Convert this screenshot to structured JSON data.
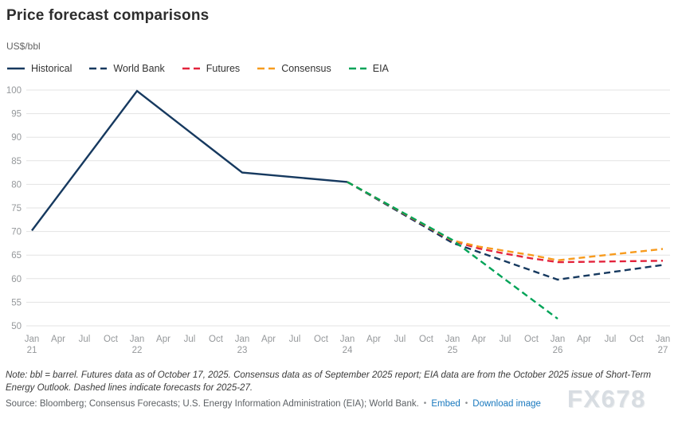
{
  "header": {
    "title": "Price forecast comparisons",
    "unit_label": "US$/bbl"
  },
  "legend": {
    "items": [
      {
        "label": "Historical",
        "color": "#16395f",
        "dashed": false
      },
      {
        "label": "World Bank",
        "color": "#16395f",
        "dashed": true
      },
      {
        "label": "Futures",
        "color": "#e3233c",
        "dashed": true
      },
      {
        "label": "Consensus",
        "color": "#f79b1e",
        "dashed": true
      },
      {
        "label": "EIA",
        "color": "#00a357",
        "dashed": true
      }
    ]
  },
  "footer": {
    "note": "Note: bbl = barrel. Futures data as of October 17, 2025. Consensus data as of September 2025 report; EIA data are from the October 2025 issue of Short-Term Energy Outlook. Dashed lines indicate forecasts for 2025-27.",
    "source": "Source: Bloomberg; Consensus Forecasts; U.S. Energy Information Administration (EIA); World Bank.",
    "bullet": "•",
    "embed_link": "Embed",
    "download_link": "Download image",
    "watermark": "FX678"
  },
  "chart_data": {
    "type": "line",
    "title": "Price forecast comparisons",
    "ylabel": "US$/bbl",
    "ylim": [
      50,
      100
    ],
    "y_ticks": [
      50,
      55,
      60,
      65,
      70,
      75,
      80,
      85,
      90,
      95,
      100
    ],
    "grid": "horizontal-only",
    "legend_position": "top-left",
    "x_axis_note": "quarterly ticks, x index 0 = Jan 2021, 4 per year",
    "x_ticks": [
      {
        "month": "Jan",
        "year": "21"
      },
      {
        "month": "Apr"
      },
      {
        "month": "Jul"
      },
      {
        "month": "Oct"
      },
      {
        "month": "Jan",
        "year": "22"
      },
      {
        "month": "Apr"
      },
      {
        "month": "Jul"
      },
      {
        "month": "Oct"
      },
      {
        "month": "Jan",
        "year": "23"
      },
      {
        "month": "Apr"
      },
      {
        "month": "Jul"
      },
      {
        "month": "Oct"
      },
      {
        "month": "Jan",
        "year": "24"
      },
      {
        "month": "Apr"
      },
      {
        "month": "Jul"
      },
      {
        "month": "Oct"
      },
      {
        "month": "Jan",
        "year": "25"
      },
      {
        "month": "Apr"
      },
      {
        "month": "Jul"
      },
      {
        "month": "Oct"
      },
      {
        "month": "Jan",
        "year": "26"
      },
      {
        "month": "Apr"
      },
      {
        "month": "Jul"
      },
      {
        "month": "Oct"
      },
      {
        "month": "Jan",
        "year": "27"
      }
    ],
    "series": [
      {
        "name": "Historical",
        "color": "#16395f",
        "dashed": false,
        "points": [
          [
            0,
            70.2
          ],
          [
            4,
            99.8
          ],
          [
            8,
            82.5
          ],
          [
            12,
            80.5
          ]
        ]
      },
      {
        "name": "World Bank",
        "color": "#16395f",
        "dashed": true,
        "points": [
          [
            12,
            80.5
          ],
          [
            16,
            67.6
          ],
          [
            20,
            59.8
          ],
          [
            24,
            62.9
          ]
        ]
      },
      {
        "name": "Futures",
        "color": "#e3233c",
        "dashed": true,
        "points": [
          [
            12,
            80.5
          ],
          [
            16,
            68.0
          ],
          [
            17,
            66.4
          ],
          [
            18,
            65.3
          ],
          [
            19,
            64.3
          ],
          [
            20,
            63.5
          ],
          [
            24,
            63.8
          ]
        ]
      },
      {
        "name": "Consensus",
        "color": "#f79b1e",
        "dashed": true,
        "points": [
          [
            12,
            80.5
          ],
          [
            16,
            68.1
          ],
          [
            17,
            66.8
          ],
          [
            18,
            65.9
          ],
          [
            19,
            65.0
          ],
          [
            20,
            63.9
          ],
          [
            24,
            66.3
          ]
        ]
      },
      {
        "name": "EIA",
        "color": "#00a357",
        "dashed": true,
        "points": [
          [
            12,
            80.5
          ],
          [
            16,
            68.2
          ],
          [
            20,
            51.5
          ]
        ]
      }
    ]
  }
}
